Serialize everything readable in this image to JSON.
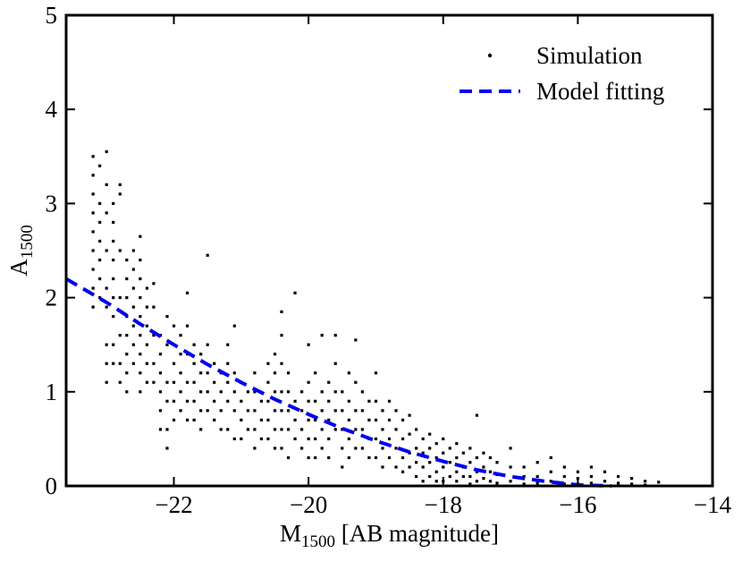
{
  "chart_data": {
    "type": "scatter",
    "title": "",
    "xlabel": {
      "main": "M",
      "sub": "1500",
      "rest": " [AB magnitude]"
    },
    "ylabel": {
      "main": "A",
      "sub": "1500"
    },
    "xlim": [
      -23.6,
      -14
    ],
    "ylim": [
      0,
      5
    ],
    "xticks": [
      {
        "value": -22,
        "label": "−22"
      },
      {
        "value": -20,
        "label": "−20"
      },
      {
        "value": -18,
        "label": "−18"
      },
      {
        "value": -16,
        "label": "−16"
      },
      {
        "value": -14,
        "label": "−14"
      }
    ],
    "yticks": [
      {
        "value": 0,
        "label": "0"
      },
      {
        "value": 1,
        "label": "1"
      },
      {
        "value": 2,
        "label": "2"
      },
      {
        "value": 3,
        "label": "3"
      },
      {
        "value": 4,
        "label": "4"
      },
      {
        "value": 5,
        "label": "5"
      }
    ],
    "grid": false,
    "legend": {
      "position": "top-right",
      "entries": [
        {
          "label": "Simulation",
          "marker": "point",
          "color": "#000000"
        },
        {
          "label": "Model fitting",
          "marker": "dashed-line",
          "color": "#0000ee"
        }
      ]
    },
    "series": [
      {
        "name": "Simulation",
        "kind": "scatter",
        "color": "#000000",
        "columns": [
          {
            "x": -23.2,
            "y": [
              3.5,
              3.3,
              3.1,
              2.9,
              2.7,
              2.5,
              2.3,
              2.1,
              1.9
            ]
          },
          {
            "x": -23.1,
            "y": [
              3.4,
              3.0,
              2.8,
              2.6,
              2.4,
              2.2,
              2.0
            ]
          },
          {
            "x": -23.0,
            "y": [
              3.55,
              3.2,
              2.9,
              2.5,
              2.1,
              1.9,
              1.5,
              1.3,
              1.1
            ]
          },
          {
            "x": -22.9,
            "y": [
              3.0,
              2.8,
              2.6,
              2.4,
              2.2,
              2.0,
              1.8,
              1.5,
              1.3
            ]
          },
          {
            "x": -22.8,
            "y": [
              3.2,
              3.1,
              2.5,
              2.0,
              1.6,
              1.3,
              1.1
            ]
          },
          {
            "x": -22.7,
            "y": [
              2.4,
              2.2,
              2.0,
              1.8,
              1.6,
              1.4,
              1.2,
              1.0
            ]
          },
          {
            "x": -22.6,
            "y": [
              2.5,
              2.3,
              2.1,
              1.9,
              1.7,
              1.5,
              1.3
            ]
          },
          {
            "x": -22.5,
            "y": [
              2.65,
              2.4,
              2.2,
              2.0,
              1.8,
              1.6,
              1.4,
              1.2,
              1.0
            ]
          },
          {
            "x": -22.4,
            "y": [
              2.1,
              1.9,
              1.7,
              1.5,
              1.3,
              1.1
            ]
          },
          {
            "x": -22.3,
            "y": [
              2.15,
              1.9,
              1.6,
              1.3,
              1.1
            ]
          },
          {
            "x": -22.2,
            "y": [
              1.6,
              1.4,
              1.2,
              1.0,
              0.8,
              0.6
            ]
          },
          {
            "x": -22.1,
            "y": [
              1.8,
              1.5,
              1.1,
              0.9,
              0.6,
              0.4
            ]
          },
          {
            "x": -22.0,
            "y": [
              1.7,
              1.5,
              1.3,
              1.1,
              0.9,
              0.7
            ]
          },
          {
            "x": -21.9,
            "y": [
              1.6,
              1.4,
              1.2,
              1.0,
              0.8
            ]
          },
          {
            "x": -21.8,
            "y": [
              2.05,
              1.7,
              1.4,
              1.1,
              0.9,
              0.7
            ]
          },
          {
            "x": -21.7,
            "y": [
              1.5,
              1.3,
              1.1,
              0.9,
              0.7
            ]
          },
          {
            "x": -21.6,
            "y": [
              1.4,
              1.2,
              1.0,
              0.8,
              0.6
            ]
          },
          {
            "x": -21.5,
            "y": [
              2.45,
              1.5,
              1.2,
              1.0,
              0.8
            ]
          },
          {
            "x": -21.4,
            "y": [
              1.3,
              1.1,
              0.9,
              0.7
            ]
          },
          {
            "x": -21.3,
            "y": [
              1.2,
              1.0,
              0.8,
              0.6
            ]
          },
          {
            "x": -21.2,
            "y": [
              1.5,
              1.3,
              1.1,
              0.9,
              0.6
            ]
          },
          {
            "x": -21.1,
            "y": [
              1.7,
              1.2,
              1.0,
              0.8,
              0.5
            ]
          },
          {
            "x": -21.0,
            "y": [
              1.1,
              0.9,
              0.7,
              0.5
            ]
          },
          {
            "x": -20.9,
            "y": [
              1.0,
              0.8,
              0.6
            ]
          },
          {
            "x": -20.8,
            "y": [
              1.2,
              1.0,
              0.8,
              0.6,
              0.4
            ]
          },
          {
            "x": -20.7,
            "y": [
              0.9,
              0.7,
              0.5
            ]
          },
          {
            "x": -20.6,
            "y": [
              1.3,
              1.1,
              0.9,
              0.7,
              0.5
            ]
          },
          {
            "x": -20.5,
            "y": [
              1.4,
              1.2,
              1.0,
              0.8,
              0.6,
              0.4
            ]
          },
          {
            "x": -20.4,
            "y": [
              1.85,
              1.6,
              1.3,
              1.0,
              0.8,
              0.6,
              0.4
            ]
          },
          {
            "x": -20.3,
            "y": [
              1.2,
              1.0,
              0.8,
              0.6,
              0.3
            ]
          },
          {
            "x": -20.2,
            "y": [
              2.05,
              0.9,
              0.7,
              0.5
            ]
          },
          {
            "x": -20.1,
            "y": [
              1.0,
              0.8,
              0.6,
              0.4
            ]
          },
          {
            "x": -20.0,
            "y": [
              1.5,
              1.1,
              0.9,
              0.7,
              0.5,
              0.3
            ]
          },
          {
            "x": -19.9,
            "y": [
              1.2,
              0.9,
              0.7,
              0.5,
              0.3
            ]
          },
          {
            "x": -19.8,
            "y": [
              1.6,
              1.0,
              0.8,
              0.6,
              0.4
            ]
          },
          {
            "x": -19.7,
            "y": [
              1.1,
              0.9,
              0.7,
              0.5,
              0.3
            ]
          },
          {
            "x": -19.6,
            "y": [
              1.6,
              1.3,
              1.0,
              0.8,
              0.6
            ]
          },
          {
            "x": -19.5,
            "y": [
              1.0,
              0.8,
              0.6,
              0.4,
              0.2
            ]
          },
          {
            "x": -19.4,
            "y": [
              1.2,
              0.9,
              0.7,
              0.5,
              0.3
            ]
          },
          {
            "x": -19.3,
            "y": [
              1.55,
              1.1,
              0.8,
              0.6,
              0.4
            ]
          },
          {
            "x": -19.2,
            "y": [
              1.0,
              0.8,
              0.6,
              0.4
            ]
          },
          {
            "x": -19.1,
            "y": [
              0.9,
              0.7,
              0.5,
              0.3
            ]
          },
          {
            "x": -19.0,
            "y": [
              1.2,
              0.9,
              0.7,
              0.5,
              0.3
            ]
          },
          {
            "x": -18.9,
            "y": [
              0.8,
              0.6,
              0.4,
              0.2
            ]
          },
          {
            "x": -18.8,
            "y": [
              0.9,
              0.7,
              0.5,
              0.3
            ]
          },
          {
            "x": -18.7,
            "y": [
              0.8,
              0.6,
              0.4,
              0.2
            ]
          },
          {
            "x": -18.6,
            "y": [
              0.7,
              0.5,
              0.3,
              0.15
            ]
          },
          {
            "x": -18.5,
            "y": [
              0.75,
              0.55,
              0.35,
              0.2
            ]
          },
          {
            "x": -18.4,
            "y": [
              0.6,
              0.4,
              0.25,
              0.1
            ]
          },
          {
            "x": -18.3,
            "y": [
              0.5,
              0.35,
              0.2,
              0.05
            ]
          },
          {
            "x": -18.2,
            "y": [
              0.55,
              0.4,
              0.25,
              0.1
            ]
          },
          {
            "x": -18.1,
            "y": [
              0.45,
              0.3,
              0.15,
              0.05
            ]
          },
          {
            "x": -18.0,
            "y": [
              0.5,
              0.35,
              0.2,
              0.05
            ]
          },
          {
            "x": -17.9,
            "y": [
              0.4,
              0.25,
              0.1
            ]
          },
          {
            "x": -17.8,
            "y": [
              0.45,
              0.3,
              0.15,
              0.05
            ]
          },
          {
            "x": -17.7,
            "y": [
              0.35,
              0.2,
              0.1
            ]
          },
          {
            "x": -17.6,
            "y": [
              0.4,
              0.25,
              0.1,
              0.02
            ]
          },
          {
            "x": -17.5,
            "y": [
              0.75,
              0.3,
              0.15,
              0.05
            ]
          },
          {
            "x": -17.4,
            "y": [
              0.35,
              0.2,
              0.08
            ]
          },
          {
            "x": -17.3,
            "y": [
              0.3,
              0.15,
              0.05
            ]
          },
          {
            "x": -17.2,
            "y": [
              0.25,
              0.12,
              0.03
            ]
          },
          {
            "x": -17.0,
            "y": [
              0.4,
              0.2,
              0.05
            ]
          },
          {
            "x": -16.8,
            "y": [
              0.2,
              0.1,
              0.02
            ]
          },
          {
            "x": -16.6,
            "y": [
              0.25,
              0.1,
              0.03
            ]
          },
          {
            "x": -16.4,
            "y": [
              0.3,
              0.15,
              0.05
            ]
          },
          {
            "x": -16.2,
            "y": [
              0.2,
              0.1,
              0.02
            ]
          },
          {
            "x": -16.0,
            "y": [
              0.15,
              0.08,
              0.02
            ]
          },
          {
            "x": -15.8,
            "y": [
              0.2,
              0.1,
              0.03
            ]
          },
          {
            "x": -15.6,
            "y": [
              0.15,
              0.05
            ]
          },
          {
            "x": -15.4,
            "y": [
              0.1,
              0.03
            ]
          },
          {
            "x": -15.2,
            "y": [
              0.08,
              0.02
            ]
          },
          {
            "x": -15.0,
            "y": [
              0.05,
              0.01
            ]
          },
          {
            "x": -14.8,
            "y": [
              0.04
            ]
          }
        ]
      },
      {
        "name": "Model fitting",
        "kind": "line",
        "style": "dashed",
        "color": "#0000ee",
        "x": [
          -23.6,
          -23.0,
          -22.5,
          -22.0,
          -21.5,
          -21.0,
          -20.5,
          -20.0,
          -19.5,
          -19.0,
          -18.5,
          -18.0,
          -17.5,
          -17.0,
          -16.5,
          -16.0,
          -15.5
        ],
        "y": [
          2.2,
          1.95,
          1.72,
          1.5,
          1.29,
          1.1,
          0.92,
          0.76,
          0.61,
          0.48,
          0.36,
          0.26,
          0.17,
          0.1,
          0.05,
          0.01,
          0.0
        ]
      }
    ]
  }
}
